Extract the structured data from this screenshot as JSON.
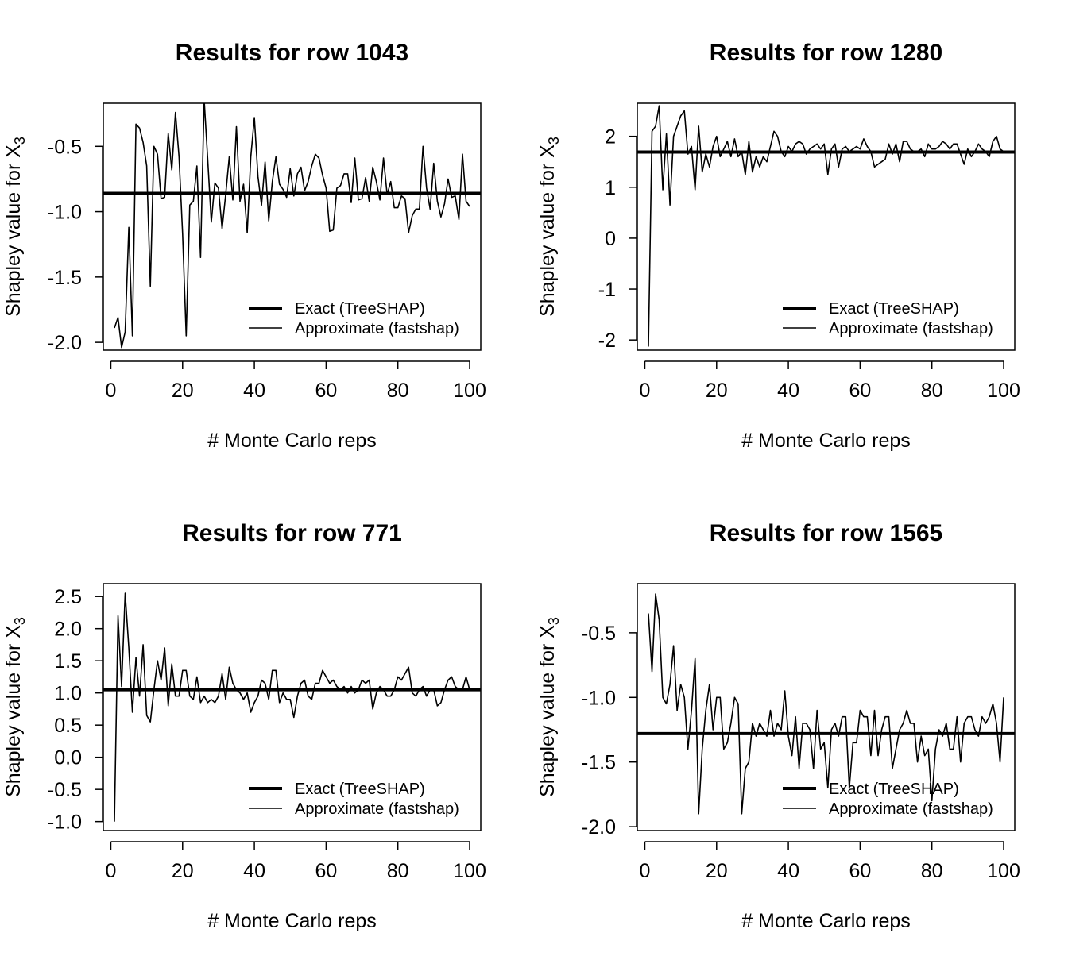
{
  "shared": {
    "xlabel": "# Monte Carlo reps",
    "ylabel_prefix": "Shapley value for X",
    "ylabel_subscript": "3",
    "legend_exact": "Exact (TreeSHAP)",
    "legend_approx": "Approximate (fastshap)",
    "line_color": "#000000"
  },
  "chart_data": [
    {
      "type": "line",
      "title": "Results for row 1043",
      "xlabel": "# Monte Carlo reps",
      "ylabel": "Shapley value for X3",
      "xlim": [
        1,
        100
      ],
      "ylim": [
        -2.06,
        -0.17
      ],
      "xticks": [
        0,
        20,
        40,
        60,
        80,
        100
      ],
      "yticks": [
        -2.0,
        -1.5,
        -1.0,
        -0.5
      ],
      "ytick_labels": [
        "-2.0",
        "-1.5",
        "-1.0",
        "-0.5"
      ],
      "legend_position": "bottom-right",
      "exact_value": -0.86,
      "series": [
        {
          "name": "Exact (TreeSHAP)",
          "values": [
            -0.86,
            -0.86
          ]
        },
        {
          "name": "Approximate (fastshap)",
          "values": [
            -1.89,
            -1.81,
            -2.04,
            -1.92,
            -1.12,
            -1.95,
            -0.33,
            -0.36,
            -0.47,
            -0.65,
            -1.57,
            -0.5,
            -0.56,
            -0.9,
            -0.89,
            -0.4,
            -0.68,
            -0.24,
            -0.58,
            -1.17,
            -1.95,
            -0.95,
            -0.92,
            -0.65,
            -1.35,
            -0.14,
            -0.6,
            -1.08,
            -0.78,
            -0.82,
            -1.13,
            -0.87,
            -0.58,
            -0.91,
            -0.35,
            -0.92,
            -0.79,
            -1.16,
            -0.58,
            -0.28,
            -0.73,
            -0.95,
            -0.62,
            -1.07,
            -0.77,
            -0.58,
            -0.79,
            -0.83,
            -0.89,
            -0.67,
            -0.88,
            -0.71,
            -0.66,
            -0.84,
            -0.77,
            -0.65,
            -0.56,
            -0.59,
            -0.72,
            -0.82,
            -1.15,
            -1.14,
            -0.82,
            -0.8,
            -0.71,
            -0.71,
            -0.93,
            -0.59,
            -0.91,
            -0.9,
            -0.74,
            -0.92,
            -0.66,
            -0.77,
            -0.91,
            -0.59,
            -0.87,
            -0.77,
            -0.97,
            -0.97,
            -0.88,
            -0.9,
            -1.16,
            -1.03,
            -0.98,
            -0.98,
            -0.5,
            -0.82,
            -0.98,
            -0.63,
            -0.92,
            -1.04,
            -0.94,
            -0.75,
            -0.89,
            -0.88,
            -1.06,
            -0.56,
            -0.92,
            -0.96
          ]
        }
      ]
    },
    {
      "type": "line",
      "title": "Results for row 1280",
      "xlabel": "# Monte Carlo reps",
      "ylabel": "Shapley value for X3",
      "xlim": [
        1,
        100
      ],
      "ylim": [
        -2.2,
        2.65
      ],
      "xticks": [
        0,
        20,
        40,
        60,
        80,
        100
      ],
      "yticks": [
        -2,
        -1,
        0,
        1,
        2
      ],
      "ytick_labels": [
        "-2",
        "-1",
        "0",
        "1",
        "2"
      ],
      "legend_position": "bottom-right",
      "exact_value": 1.69,
      "series": [
        {
          "name": "Exact (TreeSHAP)",
          "values": [
            1.69,
            1.69
          ]
        },
        {
          "name": "Approximate (fastshap)",
          "values": [
            -2.13,
            2.1,
            2.2,
            2.6,
            0.95,
            2.05,
            0.65,
            2.0,
            2.2,
            2.4,
            2.5,
            1.65,
            1.8,
            0.95,
            2.2,
            1.3,
            1.65,
            1.4,
            1.8,
            2.0,
            1.6,
            1.75,
            1.9,
            1.6,
            1.95,
            1.6,
            1.7,
            1.25,
            1.9,
            1.3,
            1.6,
            1.4,
            1.6,
            1.5,
            1.8,
            2.1,
            2.0,
            1.7,
            1.6,
            1.8,
            1.7,
            1.85,
            1.9,
            1.85,
            1.65,
            1.75,
            1.8,
            1.85,
            1.75,
            1.85,
            1.25,
            1.75,
            1.85,
            1.4,
            1.75,
            1.8,
            1.7,
            1.75,
            1.8,
            1.75,
            1.95,
            1.8,
            1.7,
            1.4,
            1.45,
            1.5,
            1.55,
            1.85,
            1.65,
            1.85,
            1.5,
            1.9,
            1.9,
            1.75,
            1.7,
            1.7,
            1.75,
            1.6,
            1.85,
            1.75,
            1.75,
            1.8,
            1.9,
            1.85,
            1.75,
            1.85,
            1.85,
            1.65,
            1.45,
            1.75,
            1.6,
            1.7,
            1.85,
            1.75,
            1.7,
            1.6,
            1.9,
            2.0,
            1.75,
            1.7
          ]
        }
      ]
    },
    {
      "type": "line",
      "title": "Results for row 771",
      "xlabel": "# Monte Carlo reps",
      "ylabel": "Shapley value for X3",
      "xlim": [
        1,
        100
      ],
      "ylim": [
        -1.14,
        2.7
      ],
      "xticks": [
        0,
        20,
        40,
        60,
        80,
        100
      ],
      "yticks": [
        -1.0,
        -0.5,
        0.0,
        0.5,
        1.0,
        1.5,
        2.0,
        2.5
      ],
      "ytick_labels": [
        "-1.0",
        "-0.5",
        "0.0",
        "0.5",
        "1.0",
        "1.5",
        "2.0",
        "2.5"
      ],
      "legend_position": "bottom-right",
      "exact_value": 1.05,
      "series": [
        {
          "name": "Exact (TreeSHAP)",
          "values": [
            1.05,
            1.05
          ]
        },
        {
          "name": "Approximate (fastshap)",
          "values": [
            -1.0,
            2.2,
            1.1,
            2.55,
            1.7,
            0.7,
            1.55,
            0.95,
            1.75,
            0.65,
            0.55,
            1.05,
            1.5,
            1.2,
            1.7,
            0.8,
            1.45,
            0.95,
            0.95,
            1.35,
            1.35,
            0.95,
            0.9,
            1.25,
            0.85,
            0.95,
            0.85,
            0.9,
            0.85,
            0.95,
            1.3,
            0.9,
            1.4,
            1.15,
            1.05,
            1.0,
            0.9,
            1.0,
            0.7,
            0.85,
            0.95,
            1.2,
            1.15,
            0.9,
            1.35,
            1.35,
            0.85,
            1.0,
            0.9,
            0.9,
            0.62,
            0.95,
            1.15,
            1.2,
            0.95,
            0.9,
            1.15,
            1.15,
            1.35,
            1.25,
            1.15,
            1.2,
            1.1,
            1.05,
            1.1,
            1.0,
            1.1,
            1.0,
            1.05,
            1.2,
            1.15,
            1.2,
            0.75,
            1.0,
            1.1,
            1.05,
            0.95,
            0.95,
            1.05,
            1.25,
            1.2,
            1.3,
            1.4,
            1.0,
            0.95,
            1.05,
            1.1,
            0.95,
            1.05,
            1.05,
            0.8,
            0.85,
            1.05,
            1.2,
            1.25,
            1.1,
            1.05,
            1.05,
            1.25,
            1.05
          ]
        }
      ]
    },
    {
      "type": "line",
      "title": "Results for row 1565",
      "xlabel": "# Monte Carlo reps",
      "ylabel": "Shapley value for X3",
      "xlim": [
        1,
        100
      ],
      "ylim": [
        -2.03,
        -0.12
      ],
      "xticks": [
        0,
        20,
        40,
        60,
        80,
        100
      ],
      "yticks": [
        -2.0,
        -1.5,
        -1.0,
        -0.5
      ],
      "ytick_labels": [
        "-2.0",
        "-1.5",
        "-1.0",
        "-0.5"
      ],
      "legend_position": "bottom-right",
      "exact_value": -1.28,
      "series": [
        {
          "name": "Exact (TreeSHAP)",
          "values": [
            -1.28,
            -1.28
          ]
        },
        {
          "name": "Approximate (fastshap)",
          "values": [
            -0.35,
            -0.8,
            -0.2,
            -0.4,
            -1.0,
            -1.05,
            -0.9,
            -0.6,
            -1.1,
            -0.9,
            -1.0,
            -1.4,
            -1.1,
            -0.7,
            -1.9,
            -1.4,
            -1.1,
            -0.9,
            -1.25,
            -1.0,
            -1.0,
            -1.4,
            -1.35,
            -1.2,
            -1.0,
            -1.05,
            -1.9,
            -1.55,
            -1.5,
            -1.2,
            -1.3,
            -1.2,
            -1.25,
            -1.3,
            -1.1,
            -1.3,
            -1.2,
            -1.25,
            -0.95,
            -1.3,
            -1.45,
            -1.15,
            -1.55,
            -1.2,
            -1.2,
            -1.25,
            -1.55,
            -1.1,
            -1.4,
            -1.35,
            -1.7,
            -1.25,
            -1.2,
            -1.3,
            -1.15,
            -1.15,
            -1.7,
            -1.35,
            -1.35,
            -1.1,
            -1.15,
            -1.15,
            -1.45,
            -1.1,
            -1.45,
            -1.25,
            -1.15,
            -1.15,
            -1.55,
            -1.4,
            -1.25,
            -1.2,
            -1.1,
            -1.2,
            -1.2,
            -1.5,
            -1.3,
            -1.45,
            -1.4,
            -1.8,
            -1.4,
            -1.25,
            -1.3,
            -1.2,
            -1.4,
            -1.4,
            -1.15,
            -1.5,
            -1.2,
            -1.15,
            -1.15,
            -1.25,
            -1.3,
            -1.15,
            -1.2,
            -1.15,
            -1.05,
            -1.2,
            -1.5,
            -1.0
          ]
        }
      ]
    }
  ]
}
